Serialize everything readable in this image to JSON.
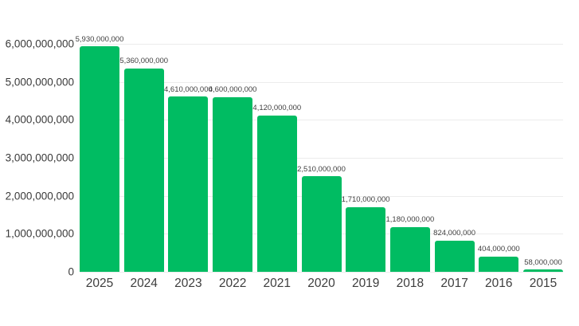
{
  "chart_data": {
    "type": "bar",
    "title": "",
    "xlabel": "",
    "ylabel": "",
    "categories": [
      "2025",
      "2024",
      "2023",
      "2022",
      "2021",
      "2020",
      "2019",
      "2018",
      "2017",
      "2016",
      "2015"
    ],
    "values": [
      5930000000,
      5360000000,
      4610000000,
      4600000000,
      4120000000,
      2510000000,
      1710000000,
      1180000000,
      824000000,
      404000000,
      58000000
    ],
    "value_labels": [
      "5,930,000,000",
      "5,360,000,000",
      "4,610,000,000",
      "4,600,000,000",
      "4,120,000,000",
      "2,510,000,000",
      "1,710,000,000",
      "1,180,000,000",
      "824,000,000",
      "404,000,000",
      "58,000,000"
    ],
    "ylim": [
      0,
      6000000000
    ],
    "y_tick_labels_top_to_bottom": [
      "6,000,000,000",
      "5,000,000,000",
      "4,000,000,000",
      "3,000,000,000",
      "2,000,000,000",
      "1,000,000,000",
      "0"
    ],
    "grid": true,
    "legend": "none",
    "colors": {
      "bar": "#00bc62",
      "grid_line": "#ececec",
      "y_tick_text": "#3a3a3a",
      "x_tick_text": "#3d3d3d",
      "value_label_text": "#3f3f3f",
      "background": "#ffffff"
    }
  }
}
